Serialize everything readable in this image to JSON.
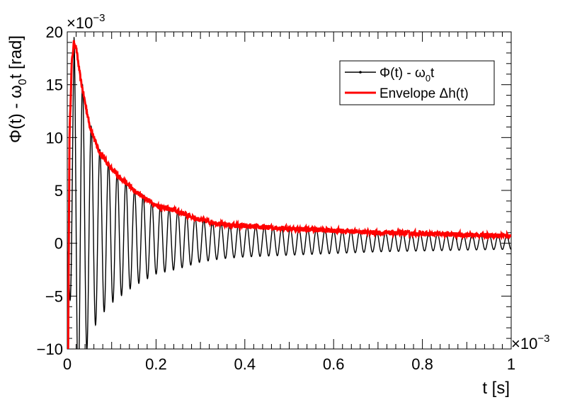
{
  "chart_data": {
    "type": "line",
    "title": "",
    "xlabel": "t [s]",
    "ylabel_parts": {
      "a": "Φ(t) - ω",
      "sub": "0",
      "b": "t [rad]"
    },
    "x_multiplier": {
      "base": "×10",
      "exp": "−3"
    },
    "y_multiplier": {
      "base": "×10",
      "exp": "−3"
    },
    "xlim": [
      0,
      1
    ],
    "ylim": [
      -10,
      20
    ],
    "x_ticks": [
      0,
      0.2,
      0.4,
      0.6,
      0.8,
      1
    ],
    "x_tick_labels": [
      "0",
      "0.2",
      "0.4",
      "0.6",
      "0.8",
      "1"
    ],
    "y_ticks": [
      -10,
      -5,
      0,
      5,
      10,
      15,
      20
    ],
    "y_tick_labels": [
      "−10",
      "−5",
      "0",
      "5",
      "10",
      "15",
      "20"
    ],
    "grid": false,
    "legend_position": "top-right",
    "series": [
      {
        "legend_parts": {
          "a": "Φ(t) - ω",
          "sub": "0",
          "b": "t"
        },
        "color": "#000000",
        "form": "damped oscillation",
        "peak": 15.5,
        "peak_time": 0.015,
        "period": 0.0195,
        "late_amplitude": 1.2
      },
      {
        "legend": "Envelope Δh(t)",
        "color": "#ff0000",
        "points": [
          [
            0.005,
            10.0
          ],
          [
            0.01,
            17.0
          ],
          [
            0.015,
            19.0
          ],
          [
            0.02,
            18.5
          ],
          [
            0.03,
            15.5
          ],
          [
            0.05,
            11.2
          ],
          [
            0.07,
            8.8
          ],
          [
            0.1,
            7.0
          ],
          [
            0.15,
            5.0
          ],
          [
            0.2,
            3.6
          ],
          [
            0.25,
            3.0
          ],
          [
            0.3,
            2.2
          ],
          [
            0.35,
            1.8
          ],
          [
            0.4,
            1.6
          ],
          [
            0.5,
            1.4
          ],
          [
            0.6,
            1.2
          ],
          [
            0.7,
            1.0
          ],
          [
            0.8,
            0.9
          ],
          [
            0.9,
            0.8
          ],
          [
            1.0,
            0.7
          ]
        ]
      }
    ]
  }
}
